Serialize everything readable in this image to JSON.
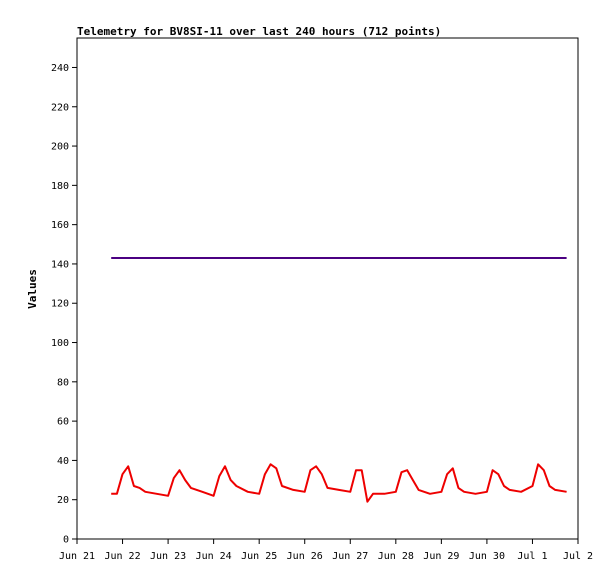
{
  "chart_data": {
    "type": "line",
    "title": "Telemetry for BV8SI-11 over last 240 hours (712 points)",
    "xlabel": "",
    "ylabel": "Values",
    "ylim": [
      0,
      255
    ],
    "yticks": [
      0,
      20,
      40,
      60,
      80,
      100,
      120,
      140,
      160,
      180,
      200,
      220,
      240
    ],
    "xlim": [
      "2024-06-21",
      "2024-07-02"
    ],
    "xticks": [
      {
        "date": "2024-06-21",
        "label": "Jun 21"
      },
      {
        "date": "2024-06-22",
        "label": "Jun 22"
      },
      {
        "date": "2024-06-23",
        "label": "Jun 23"
      },
      {
        "date": "2024-06-24",
        "label": "Jun 24"
      },
      {
        "date": "2024-06-25",
        "label": "Jun 25"
      },
      {
        "date": "2024-06-26",
        "label": "Jun 26"
      },
      {
        "date": "2024-06-27",
        "label": "Jun 27"
      },
      {
        "date": "2024-06-28",
        "label": "Jun 28"
      },
      {
        "date": "2024-06-29",
        "label": "Jun 29"
      },
      {
        "date": "2024-06-30",
        "label": "Jun 30"
      },
      {
        "date": "2024-07-01",
        "label": "Jul 1"
      },
      {
        "date": "2024-07-02",
        "label": "Jul 2"
      }
    ],
    "grid": false,
    "legend": "none",
    "series": [
      {
        "color": "#4b0082",
        "x": [
          "2024-06-21T18:00",
          "2024-07-01T18:00"
        ],
        "y": [
          143,
          143
        ]
      },
      {
        "color": "#ee0000",
        "x": [
          "2024-06-21T18:00",
          "2024-06-21T21:00",
          "2024-06-22T00:00",
          "2024-06-22T03:00",
          "2024-06-22T06:00",
          "2024-06-22T09:00",
          "2024-06-22T12:00",
          "2024-06-22T18:00",
          "2024-06-23T00:00",
          "2024-06-23T03:00",
          "2024-06-23T06:00",
          "2024-06-23T09:00",
          "2024-06-23T12:00",
          "2024-06-23T18:00",
          "2024-06-24T00:00",
          "2024-06-24T03:00",
          "2024-06-24T06:00",
          "2024-06-24T09:00",
          "2024-06-24T12:00",
          "2024-06-24T18:00",
          "2024-06-25T00:00",
          "2024-06-25T03:00",
          "2024-06-25T06:00",
          "2024-06-25T09:00",
          "2024-06-25T12:00",
          "2024-06-25T18:00",
          "2024-06-26T00:00",
          "2024-06-26T03:00",
          "2024-06-26T06:00",
          "2024-06-26T09:00",
          "2024-06-26T12:00",
          "2024-06-26T18:00",
          "2024-06-27T00:00",
          "2024-06-27T03:00",
          "2024-06-27T06:00",
          "2024-06-27T09:00",
          "2024-06-27T12:00",
          "2024-06-27T18:00",
          "2024-06-28T00:00",
          "2024-06-28T03:00",
          "2024-06-28T06:00",
          "2024-06-28T09:00",
          "2024-06-28T12:00",
          "2024-06-28T18:00",
          "2024-06-29T00:00",
          "2024-06-29T03:00",
          "2024-06-29T06:00",
          "2024-06-29T09:00",
          "2024-06-29T12:00",
          "2024-06-29T18:00",
          "2024-06-30T00:00",
          "2024-06-30T03:00",
          "2024-06-30T06:00",
          "2024-06-30T09:00",
          "2024-06-30T12:00",
          "2024-06-30T18:00",
          "2024-07-01T00:00",
          "2024-07-01T03:00",
          "2024-07-01T06:00",
          "2024-07-01T09:00",
          "2024-07-01T12:00",
          "2024-07-01T18:00"
        ],
        "y": [
          23,
          23,
          33,
          37,
          27,
          26,
          24,
          23,
          22,
          31,
          35,
          30,
          26,
          24,
          22,
          32,
          37,
          30,
          27,
          24,
          23,
          33,
          38,
          36,
          27,
          25,
          24,
          35,
          37,
          33,
          26,
          25,
          24,
          35,
          35,
          19,
          23,
          23,
          24,
          34,
          35,
          30,
          25,
          23,
          24,
          33,
          36,
          26,
          24,
          23,
          24,
          35,
          33,
          27,
          25,
          24,
          27,
          38,
          35,
          27,
          25,
          24
        ]
      }
    ]
  }
}
